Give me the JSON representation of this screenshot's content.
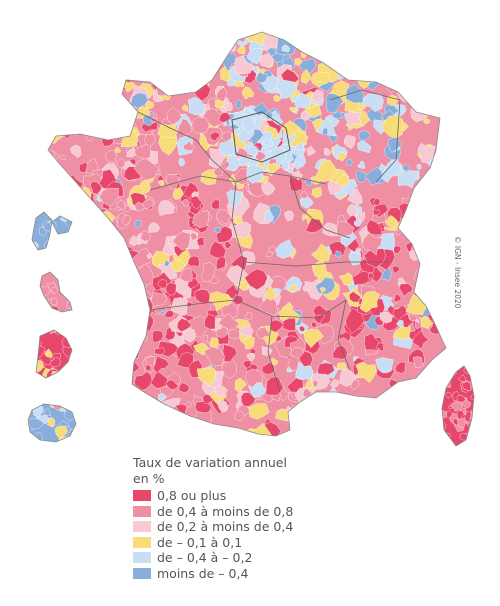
{
  "map": {
    "territories": [
      "France métropolitaine",
      "Corse",
      "Guadeloupe",
      "Martinique",
      "Guyane",
      "La Réunion"
    ],
    "region_boundaries": true,
    "categories_in_order_of_intensity": [
      "0,8 ou plus",
      "de 0,4 à moins de 0,8",
      "de 0,2 à moins de 0,4",
      "de – 0,1 à 0,1",
      "de – 0,4 à – 0,2",
      "moins de – 0,4"
    ]
  },
  "legend": {
    "title_line1": "Taux de variation annuel",
    "title_line2": "en %",
    "items": [
      {
        "label": "0,8 ou plus",
        "color": "#e8476c"
      },
      {
        "label": "de 0,4 à moins de 0,8",
        "color": "#ef8fa4"
      },
      {
        "label": "de 0,2 à moins de 0,4",
        "color": "#f7c9d3"
      },
      {
        "label": "de – 0,1 à 0,1",
        "color": "#f8dc7a"
      },
      {
        "label": "de – 0,4 à – 0,2",
        "color": "#c8def5"
      },
      {
        "label": "moins de – 0,4",
        "color": "#8aaedc"
      }
    ]
  },
  "source": "© IGN - Insee 2020"
}
